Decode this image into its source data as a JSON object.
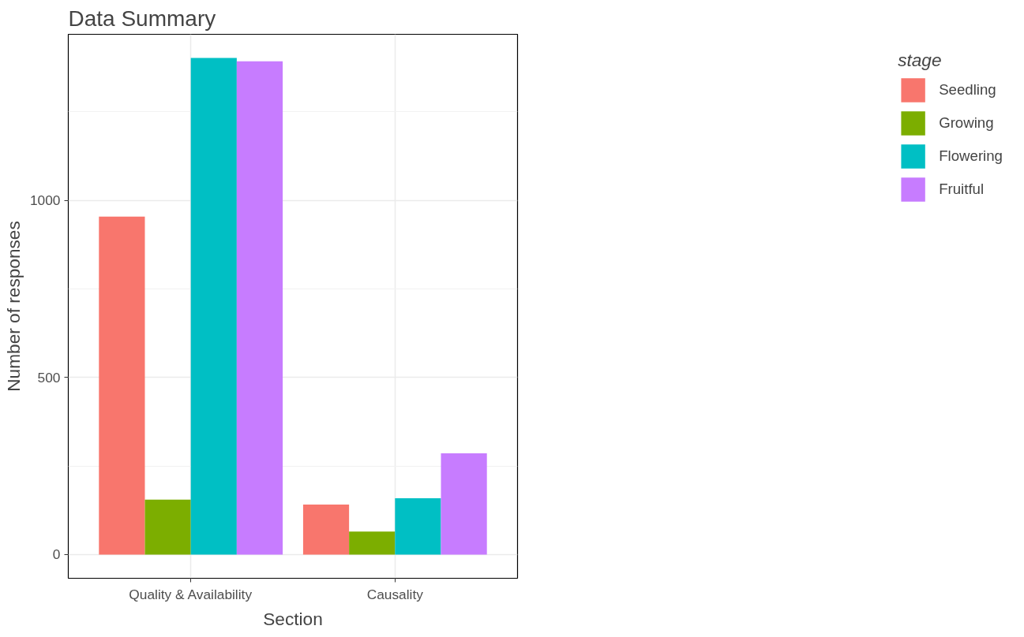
{
  "chart_data": {
    "type": "bar",
    "title": "Data Summary",
    "xlabel": "Section",
    "ylabel": "Number of responses",
    "legend_title": "stage",
    "categories": [
      "Quality & Availability",
      "Causality"
    ],
    "series": [
      {
        "name": "Seedling",
        "color": "#f8766d",
        "values": [
          954,
          141
        ]
      },
      {
        "name": "Growing",
        "color": "#7cae00",
        "values": [
          155,
          65
        ]
      },
      {
        "name": "Flowering",
        "color": "#00bfc4",
        "values": [
          1402,
          159
        ]
      },
      {
        "name": "Fruitful",
        "color": "#c77cff",
        "values": [
          1393,
          286
        ]
      }
    ],
    "ylim": [
      -67,
      1469
    ],
    "yticks": [
      0,
      500,
      1000
    ],
    "grid": true,
    "legend": "right"
  }
}
